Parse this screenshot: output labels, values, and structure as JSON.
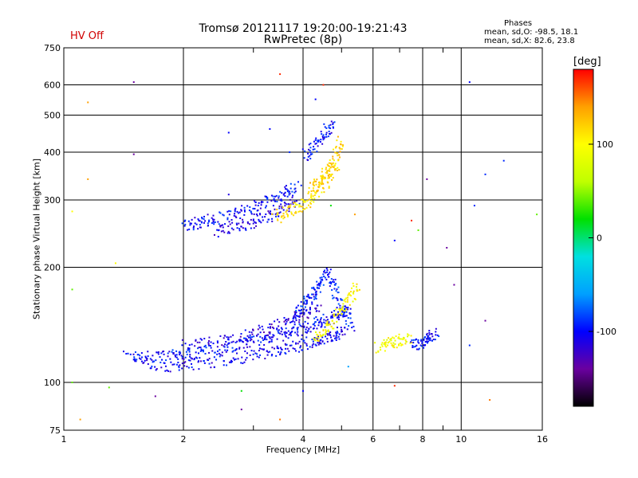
{
  "header": {
    "title_line1": "Tromsø 20121117 19:20:00-19:21:43",
    "title_line2": "RwPretec (8p)",
    "hv_status": "HV Off",
    "phases_title": "Phases",
    "phases_o": "mean, sd,O: -98.5, 18.1",
    "phases_x": "mean, sd,X:  82.6, 23.8"
  },
  "colorbar": {
    "unit": "[deg]",
    "min": -180,
    "max": 180,
    "tick_labels": [
      "100",
      "0",
      "-100"
    ],
    "tick_values": [
      100,
      0,
      -100
    ],
    "colors": [
      "#000000",
      "#6a00a0",
      "#0000ff",
      "#00a0ff",
      "#00e0e0",
      "#00e000",
      "#c0ff00",
      "#ffff00",
      "#ffa000",
      "#ff0000"
    ]
  },
  "chart_data": {
    "type": "scatter",
    "title": "Tromsø 20121117 19:20:00-19:21:43",
    "subtitle": "RwPretec (8p)",
    "xlabel": "Frequency [MHz]",
    "ylabel": "Stationary phase Virtual Height [km]",
    "x_scale": "log",
    "y_scale": "log",
    "xlim": [
      1,
      16
    ],
    "ylim": [
      75,
      750
    ],
    "x_ticks": [
      1,
      2,
      4,
      6,
      8,
      10,
      16
    ],
    "x_tick_labels": [
      "1",
      "2",
      "4",
      "6",
      "8",
      "10",
      "16"
    ],
    "x_grid": [
      2,
      4,
      6,
      8,
      10
    ],
    "x_minor": [
      3,
      5,
      7,
      9
    ],
    "y_ticks": [
      75,
      100,
      200,
      300,
      400,
      500,
      600,
      750
    ],
    "y_tick_labels": [
      "75",
      "100",
      "200",
      "300",
      "400",
      "500",
      "600",
      "750"
    ],
    "y_grid": [
      100,
      200,
      300,
      400,
      500,
      600
    ],
    "grid": true,
    "color_encoding": "phase [deg]",
    "traces": [
      {
        "name": "",
        "x": [
          1.45,
          1.6,
          1.8,
          2.0,
          2.2,
          2.5,
          2.8,
          3.1,
          3.4,
          3.7,
          4.0,
          4.3,
          4.6,
          4.9,
          5.2
        ],
        "y": [
          117,
          116,
          117,
          118,
          120,
          123,
          126,
          129,
          132,
          135,
          138,
          142,
          146,
          150,
          157
        ],
        "phase": -100
      },
      {
        "name": "",
        "x": [
          1.6,
          1.9,
          2.2,
          2.6,
          3.0,
          3.4,
          3.8,
          4.2,
          4.5,
          4.8,
          5.1
        ],
        "y": [
          111,
          110,
          112,
          114,
          118,
          121,
          124,
          127,
          130,
          133,
          137
        ],
        "phase": -105
      },
      {
        "name": "",
        "x": [
          2.0,
          2.4,
          2.8,
          3.2,
          3.6,
          4.0,
          4.4
        ],
        "y": [
          125,
          128,
          132,
          137,
          143,
          150,
          160
        ],
        "phase": -115
      },
      {
        "name": "",
        "x": [
          3.8,
          4.0,
          4.2,
          4.4,
          4.6,
          4.8,
          5.0,
          5.3
        ],
        "y": [
          150,
          158,
          168,
          180,
          195,
          175,
          155,
          140
        ],
        "phase": -95
      },
      {
        "name": "",
        "x": [
          4.3,
          4.6,
          4.9,
          5.2,
          5.5
        ],
        "y": [
          128,
          138,
          150,
          165,
          180
        ],
        "phase": 100
      },
      {
        "name": "",
        "x": [
          6.2,
          6.6,
          7.0,
          7.4
        ],
        "y": [
          123,
          127,
          129,
          130
        ],
        "phase": 95
      },
      {
        "name": "",
        "x": [
          7.6,
          8.0,
          8.3,
          8.6
        ],
        "y": [
          125,
          127,
          131,
          135
        ],
        "phase": -100
      },
      {
        "name": "",
        "x": [
          2.0,
          2.2,
          2.4,
          2.7,
          3.0,
          3.3,
          3.6,
          3.9
        ],
        "y": [
          258,
          262,
          268,
          276,
          286,
          298,
          312,
          330
        ],
        "phase": -100
      },
      {
        "name": "",
        "x": [
          2.4,
          2.7,
          3.0,
          3.3,
          3.6,
          3.9
        ],
        "y": [
          248,
          254,
          262,
          272,
          284,
          300
        ],
        "phase": -110
      },
      {
        "name": "",
        "x": [
          3.4,
          3.7,
          4.0,
          4.3,
          4.6,
          4.9
        ],
        "y": [
          270,
          280,
          292,
          310,
          335,
          370
        ],
        "phase": 110
      },
      {
        "name": "",
        "x": [
          4.2,
          4.4,
          4.6,
          4.8,
          5.0
        ],
        "y": [
          320,
          335,
          355,
          385,
          430
        ],
        "phase": 120
      },
      {
        "name": "",
        "x": [
          4.05,
          4.3,
          4.55,
          4.8
        ],
        "y": [
          390,
          420,
          450,
          480
        ],
        "phase": -100
      }
    ],
    "scattered_points": [
      [
        1.5,
        610,
        -140
      ],
      [
        1.15,
        540,
        140
      ],
      [
        1.5,
        395,
        -140
      ],
      [
        1.15,
        340,
        140
      ],
      [
        1.05,
        280,
        100
      ],
      [
        1.35,
        205,
        100
      ],
      [
        1.05,
        100,
        40
      ],
      [
        1.3,
        97,
        40
      ],
      [
        1.1,
        80,
        140
      ],
      [
        1.7,
        92,
        -140
      ],
      [
        2.6,
        450,
        -100
      ],
      [
        2.6,
        310,
        -110
      ],
      [
        2.8,
        95,
        20
      ],
      [
        2.8,
        85,
        -140
      ],
      [
        3.5,
        640,
        170
      ],
      [
        3.3,
        460,
        -100
      ],
      [
        3.7,
        400,
        -90
      ],
      [
        4.3,
        550,
        -100
      ],
      [
        4.5,
        600,
        170
      ],
      [
        4.7,
        290,
        20
      ],
      [
        5.4,
        275,
        140
      ],
      [
        6.8,
        235,
        -100
      ],
      [
        7.5,
        265,
        170
      ],
      [
        7.8,
        250,
        40
      ],
      [
        8.2,
        340,
        -140
      ],
      [
        9.2,
        225,
        -140
      ],
      [
        9.6,
        180,
        -140
      ],
      [
        10.5,
        610,
        -100
      ],
      [
        10.8,
        290,
        -90
      ],
      [
        11.5,
        350,
        -90
      ],
      [
        12.8,
        380,
        -90
      ],
      [
        15.5,
        275,
        40
      ],
      [
        11.5,
        145,
        -140
      ],
      [
        11.8,
        90,
        150
      ],
      [
        10.5,
        125,
        -90
      ],
      [
        4.0,
        95,
        -100
      ],
      [
        5.2,
        110,
        -60
      ],
      [
        6.8,
        98,
        170
      ],
      [
        3.5,
        80,
        150
      ],
      [
        1.05,
        175,
        40
      ]
    ]
  }
}
